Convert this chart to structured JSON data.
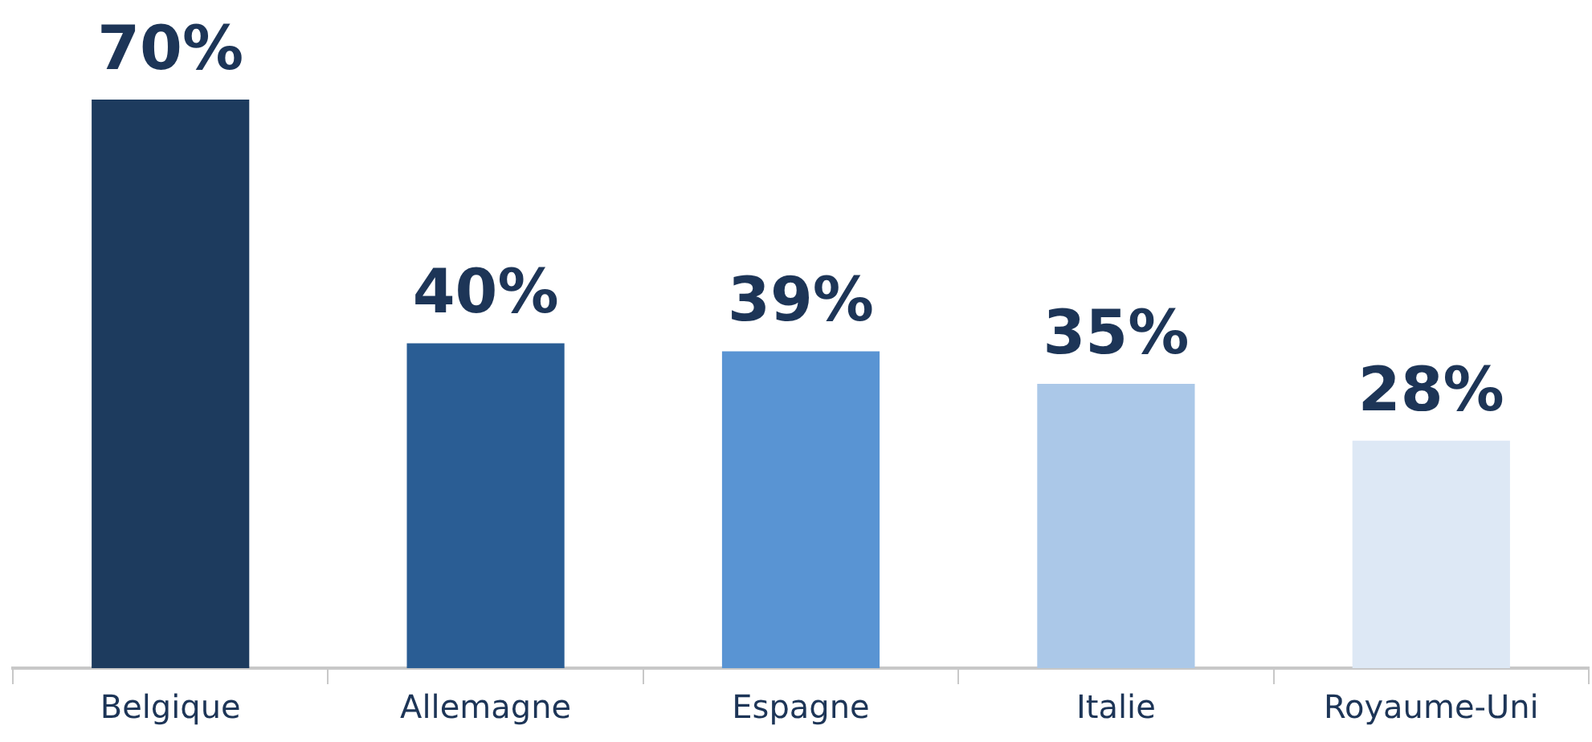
{
  "chart_data": {
    "type": "bar",
    "categories": [
      "Belgique",
      "Allemagne",
      "Espagne",
      "Italie",
      "Royaume-Uni"
    ],
    "values": [
      70,
      40,
      39,
      35,
      28
    ],
    "colors": [
      "#1d3b5e",
      "#2a5d94",
      "#5994d3",
      "#abc8e8",
      "#dde8f5"
    ],
    "value_labels": [
      "70%",
      "40%",
      "39%",
      "35%",
      "28%"
    ],
    "grid": false,
    "legend": false
  }
}
